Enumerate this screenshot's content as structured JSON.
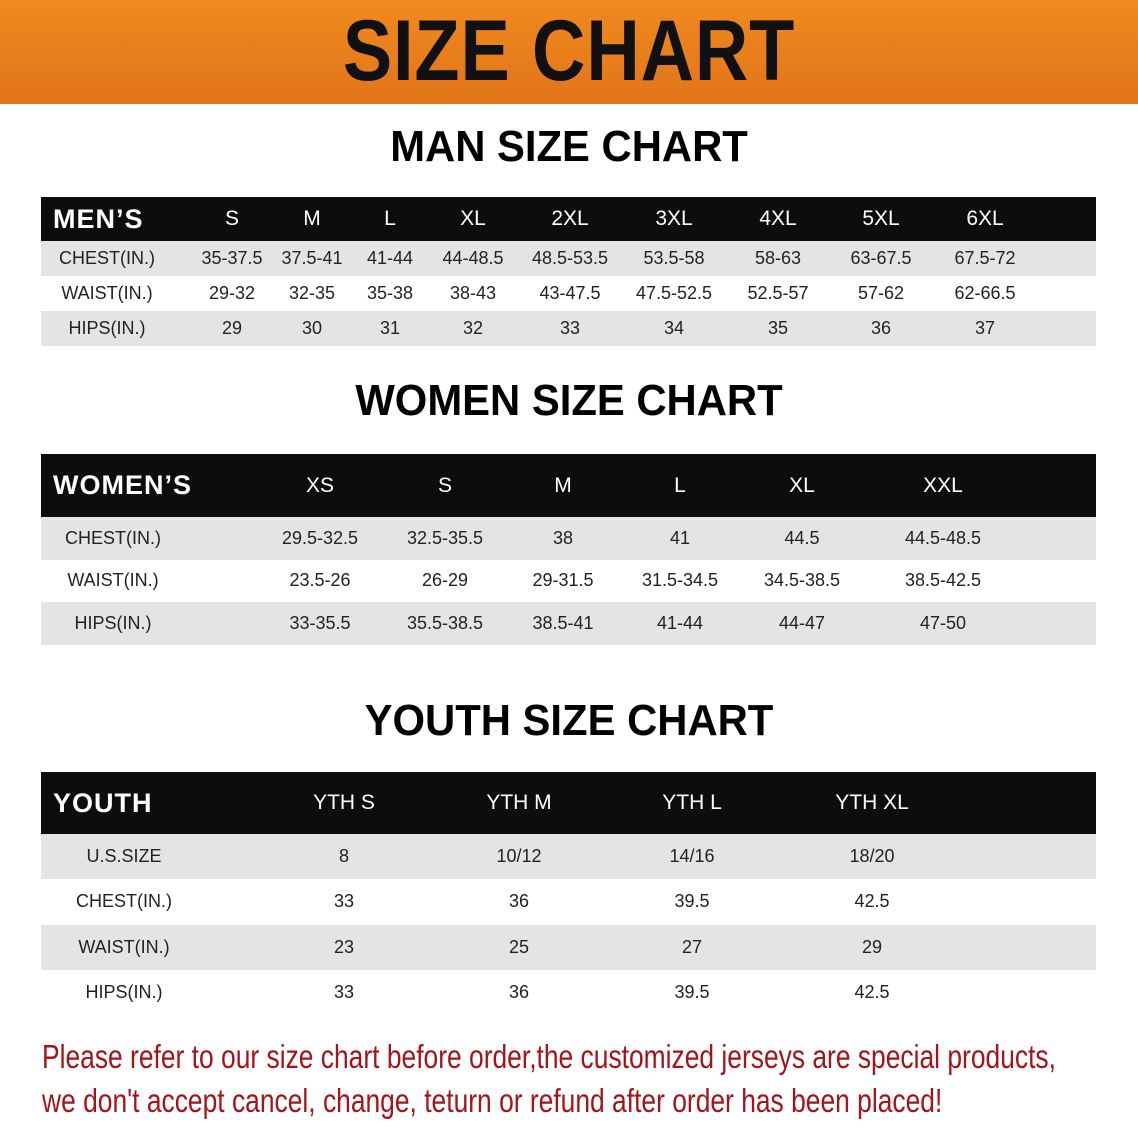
{
  "banner": {
    "title": "SIZE CHART"
  },
  "men": {
    "title": "MAN SIZE CHART",
    "header": [
      "MEN’S",
      "S",
      "M",
      "L",
      "XL",
      "2XL",
      "3XL",
      "4XL",
      "5XL",
      "6XL"
    ],
    "rows": [
      [
        "CHEST(IN.)",
        "35-37.5",
        "37.5-41",
        "41-44",
        "44-48.5",
        "48.5-53.5",
        "53.5-58",
        "58-63",
        "63-67.5",
        "67.5-72"
      ],
      [
        "WAIST(IN.)",
        "29-32",
        "32-35",
        "35-38",
        "38-43",
        "43-47.5",
        "47.5-52.5",
        "52.5-57",
        "57-62",
        "62-66.5"
      ],
      [
        "HIPS(IN.)",
        "29",
        "30",
        "31",
        "32",
        "33",
        "34",
        "35",
        "36",
        "37"
      ]
    ]
  },
  "women": {
    "title": "WOMEN SIZE CHART",
    "header": [
      "WOMEN’S",
      "XS",
      "S",
      "M",
      "L",
      "XL",
      "XXL"
    ],
    "rows": [
      [
        "CHEST(IN.)",
        "29.5-32.5",
        "32.5-35.5",
        "38",
        "41",
        "44.5",
        "44.5-48.5"
      ],
      [
        "WAIST(IN.)",
        "23.5-26",
        "26-29",
        "29-31.5",
        "31.5-34.5",
        "34.5-38.5",
        "38.5-42.5"
      ],
      [
        "HIPS(IN.)",
        "33-35.5",
        "35.5-38.5",
        "38.5-41",
        "41-44",
        "44-47",
        "47-50"
      ]
    ]
  },
  "youth": {
    "title": "YOUTH SIZE CHART",
    "header": [
      "YOUTH",
      "YTH S",
      "YTH M",
      "YTH L",
      "YTH XL"
    ],
    "rows": [
      [
        "U.S.SIZE",
        "8",
        "10/12",
        "14/16",
        "18/20"
      ],
      [
        "CHEST(IN.)",
        "33",
        "36",
        "39.5",
        "42.5"
      ],
      [
        "WAIST(IN.)",
        "23",
        "25",
        "27",
        "29"
      ],
      [
        "HIPS(IN.)",
        "33",
        "36",
        "39.5",
        "42.5"
      ]
    ]
  },
  "notice": {
    "line1": "Please refer to our size chart before order,the customized jerseys are special products,",
    "line2": "we don't accept cancel, change, teturn or refund after order has been placed!"
  },
  "colors": {
    "banner": "#e8801c",
    "notice": "#a3151b",
    "header_row": "#0d0d0d",
    "stripe": "#e4e4e6"
  }
}
